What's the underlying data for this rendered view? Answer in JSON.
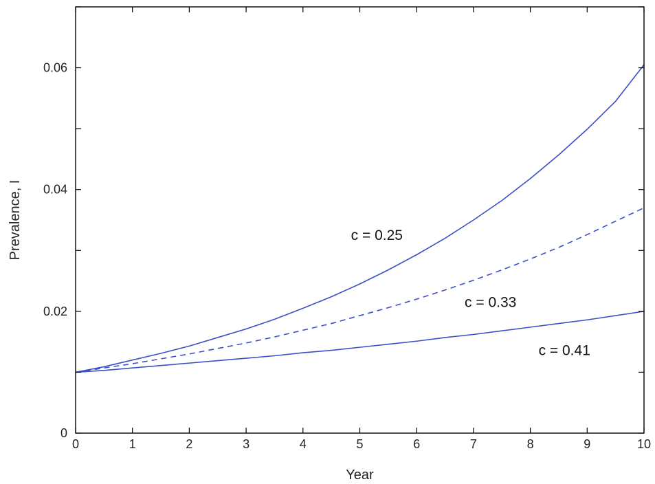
{
  "chart_data": {
    "type": "line",
    "xlabel": "Year",
    "ylabel": "Prevalence, I",
    "xlim": [
      0,
      10
    ],
    "ylim": [
      0,
      0.07
    ],
    "x_ticks": [
      0,
      1,
      2,
      3,
      4,
      5,
      6,
      7,
      8,
      9,
      10
    ],
    "x_tick_labels": [
      "0",
      "1",
      "2",
      "3",
      "4",
      "5",
      "6",
      "7",
      "8",
      "9",
      "10"
    ],
    "y_ticks": [
      0,
      0.01,
      0.02,
      0.03,
      0.04,
      0.05,
      0.06,
      0.07
    ],
    "y_tick_labels": [
      "0",
      "",
      "0.02",
      "",
      "0.04",
      "",
      "0.06",
      ""
    ],
    "grid": false,
    "legend": "none",
    "x": [
      0,
      0.5,
      1,
      1.5,
      2,
      2.5,
      3,
      3.5,
      4,
      4.5,
      5,
      5.5,
      6,
      6.5,
      7,
      7.5,
      8,
      8.5,
      9,
      9.5,
      10
    ],
    "series": [
      {
        "style": "solid",
        "color": "#3b4fc4",
        "values": [
          0.01,
          0.0109,
          0.012,
          0.0131,
          0.0143,
          0.0157,
          0.0171,
          0.0187,
          0.0205,
          0.0224,
          0.0245,
          0.0268,
          0.0293,
          0.032,
          0.035,
          0.0382,
          0.0418,
          0.0457,
          0.0499,
          0.0545,
          0.0605
        ]
      },
      {
        "style": "dashed",
        "color": "#3b4fc4",
        "values": [
          0.01,
          0.0107,
          0.0114,
          0.0122,
          0.013,
          0.0139,
          0.0148,
          0.0158,
          0.0169,
          0.018,
          0.0193,
          0.0206,
          0.022,
          0.0235,
          0.0251,
          0.0268,
          0.0286,
          0.0305,
          0.0326,
          0.0348,
          0.037
        ]
      },
      {
        "style": "solid",
        "color": "#3b4fc4",
        "values": [
          0.01,
          0.0103,
          0.0107,
          0.0111,
          0.0115,
          0.0119,
          0.0123,
          0.0127,
          0.0132,
          0.0136,
          0.0141,
          0.0146,
          0.0151,
          0.0157,
          0.0162,
          0.0168,
          0.0174,
          0.018,
          0.0186,
          0.0193,
          0.02
        ]
      }
    ],
    "annotations": [
      {
        "text": "c = 0.25",
        "x": 5.3,
        "y": 0.0325
      },
      {
        "text": "c = 0.33",
        "x": 7.3,
        "y": 0.0215
      },
      {
        "text": "c = 0.41",
        "x": 8.6,
        "y": 0.0136
      }
    ]
  }
}
